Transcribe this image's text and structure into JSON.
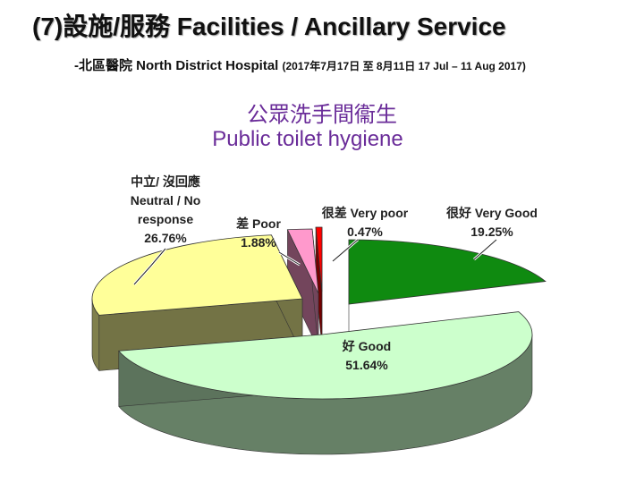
{
  "header": {
    "title": "(7)設施/服務 Facilities / Ancillary Service",
    "subtitle_prefix": "-北區醫院  North District Hospital",
    "subtitle_dates": "(2017年7月17日 至 8月11日 17 Jul – 11 Aug 2017)"
  },
  "chart_title_zh": "公眾洗手間衞生",
  "chart_title_en": "Public toilet hygiene",
  "colors": {
    "very_good": "#0f8a10",
    "good": "#ccffcc",
    "neutral": "#ffff99",
    "poor": "#ff99cc",
    "very_poor": "#ff0000",
    "title": "#6a2c99"
  },
  "chart_data": {
    "type": "pie",
    "title": "公眾洗手間衞生 Public toilet hygiene",
    "series": [
      {
        "name": "很好 Very Good",
        "value": 19.25,
        "label_pct": "19.25%",
        "label_lines": [
          "很好 Very Good"
        ]
      },
      {
        "name": "好 Good",
        "value": 51.64,
        "label_pct": "51.64%",
        "label_lines": [
          "好 Good"
        ]
      },
      {
        "name": "中立/ 沒回應 Neutral / No response",
        "value": 26.76,
        "label_pct": "26.76%",
        "label_lines": [
          "中立/ 沒回應",
          "Neutral / No",
          "response"
        ]
      },
      {
        "name": "差 Poor",
        "value": 1.88,
        "label_pct": "1.88%",
        "label_lines": [
          "差 Poor"
        ]
      },
      {
        "name": "很差 Very poor",
        "value": 0.47,
        "label_pct": "0.47%",
        "label_lines": [
          "很差 Very poor"
        ]
      }
    ]
  }
}
